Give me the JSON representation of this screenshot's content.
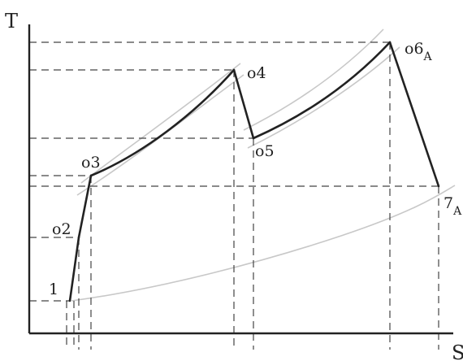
{
  "axes": {
    "y_label": "T",
    "x_label": "S"
  },
  "colors": {
    "process": "#222222",
    "guide": "#444444",
    "isobar": "#c8c8c8",
    "axis": "#222222"
  },
  "points": [
    {
      "id": "p1",
      "label": "1",
      "sub": ""
    },
    {
      "id": "p2",
      "label": "o2",
      "sub": ""
    },
    {
      "id": "p3",
      "label": "o3",
      "sub": ""
    },
    {
      "id": "p4",
      "label": "o4",
      "sub": ""
    },
    {
      "id": "p5",
      "label": "o5",
      "sub": ""
    },
    {
      "id": "p6",
      "label": "o6",
      "sub": "A"
    },
    {
      "id": "p7",
      "label": "7",
      "sub": "A"
    }
  ]
}
